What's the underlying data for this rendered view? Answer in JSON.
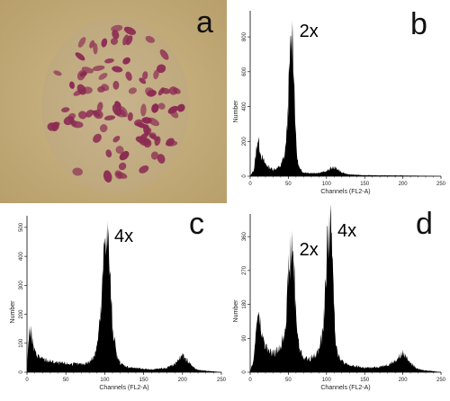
{
  "panel_labels": [
    "a",
    "b",
    "c",
    "d"
  ],
  "micrograph": {
    "background_color": "#c8b37e",
    "nucleus_color": "#8b2a52",
    "description_icon": "chromosome-spread-photo"
  },
  "chart_data": [
    {
      "panel": "b",
      "type": "area",
      "title": "",
      "xlabel": "Channels (FL2-A)",
      "ylabel": "Number",
      "xlim": [
        0,
        250
      ],
      "ylim": [
        0,
        950
      ],
      "xticks": [
        "0",
        "50",
        "100",
        "150",
        "200",
        "250"
      ],
      "yticks": [
        "0",
        "200",
        "400",
        "600",
        "800"
      ],
      "peak_labels": [
        {
          "text": "2x",
          "x": 55,
          "y": 800
        }
      ],
      "series": [
        {
          "x": [
            0,
            5,
            8,
            10,
            12,
            15,
            20,
            25,
            30,
            35,
            40,
            45,
            48,
            50,
            52,
            54,
            55,
            56,
            58,
            60,
            62,
            65,
            70,
            80,
            90,
            100,
            105,
            110,
            115,
            120,
            130,
            150,
            170,
            200,
            220,
            240,
            250
          ],
          "values": [
            0,
            40,
            150,
            220,
            175,
            110,
            70,
            50,
            40,
            45,
            60,
            120,
            250,
            450,
            650,
            800,
            820,
            780,
            500,
            200,
            90,
            40,
            22,
            18,
            20,
            28,
            45,
            50,
            40,
            20,
            10,
            6,
            5,
            4,
            3,
            2,
            0
          ]
        }
      ]
    },
    {
      "panel": "c",
      "type": "area",
      "title": "",
      "xlabel": "Channels (FL2-A)",
      "ylabel": "Number",
      "xlim": [
        0,
        250
      ],
      "ylim": [
        0,
        540
      ],
      "xticks": [
        "0",
        "50",
        "100",
        "150",
        "200",
        "250"
      ],
      "yticks": [
        "0",
        "100",
        "200",
        "300",
        "400",
        "500"
      ],
      "peak_labels": [
        {
          "text": "4x",
          "x": 103,
          "y": 450
        }
      ],
      "series": [
        {
          "x": [
            0,
            2,
            5,
            8,
            10,
            15,
            20,
            30,
            40,
            50,
            60,
            70,
            80,
            85,
            90,
            95,
            98,
            100,
            102,
            104,
            106,
            108,
            110,
            115,
            120,
            130,
            140,
            150,
            160,
            170,
            180,
            190,
            195,
            200,
            205,
            210,
            215,
            220,
            230,
            240,
            250
          ],
          "values": [
            0,
            130,
            140,
            90,
            70,
            55,
            45,
            38,
            32,
            30,
            28,
            28,
            35,
            50,
            90,
            200,
            350,
            470,
            500,
            460,
            380,
            260,
            160,
            60,
            30,
            18,
            14,
            12,
            10,
            12,
            15,
            28,
            45,
            55,
            45,
            30,
            15,
            8,
            5,
            3,
            0
          ]
        }
      ]
    },
    {
      "panel": "d",
      "type": "area",
      "title": "",
      "xlabel": "Channels (FL2-A)",
      "ylabel": "Number",
      "xlim": [
        0,
        250
      ],
      "ylim": [
        0,
        420
      ],
      "xticks": [
        "0",
        "50",
        "100",
        "150",
        "200",
        "250"
      ],
      "yticks": [
        "0",
        "90",
        "180",
        "270",
        "360"
      ],
      "peak_labels": [
        {
          "text": "2x",
          "x": 55,
          "y": 310
        },
        {
          "text": "4x",
          "x": 105,
          "y": 360
        }
      ],
      "series": [
        {
          "x": [
            0,
            5,
            8,
            10,
            12,
            15,
            20,
            25,
            30,
            35,
            40,
            45,
            48,
            50,
            52,
            54,
            55,
            56,
            58,
            60,
            62,
            65,
            70,
            75,
            80,
            85,
            90,
            95,
            98,
            100,
            102,
            104,
            106,
            108,
            110,
            112,
            115,
            120,
            125,
            130,
            140,
            150,
            160,
            170,
            180,
            190,
            195,
            200,
            205,
            210,
            215,
            220,
            230,
            240,
            250
          ],
          "values": [
            0,
            40,
            120,
            160,
            140,
            100,
            70,
            55,
            50,
            55,
            70,
            110,
            180,
            250,
            300,
            320,
            325,
            310,
            250,
            160,
            100,
            60,
            40,
            35,
            38,
            45,
            60,
            100,
            200,
            290,
            370,
            400,
            380,
            280,
            170,
            90,
            50,
            30,
            22,
            18,
            15,
            12,
            12,
            15,
            20,
            30,
            40,
            50,
            40,
            28,
            15,
            8,
            5,
            3,
            0
          ]
        }
      ]
    }
  ]
}
